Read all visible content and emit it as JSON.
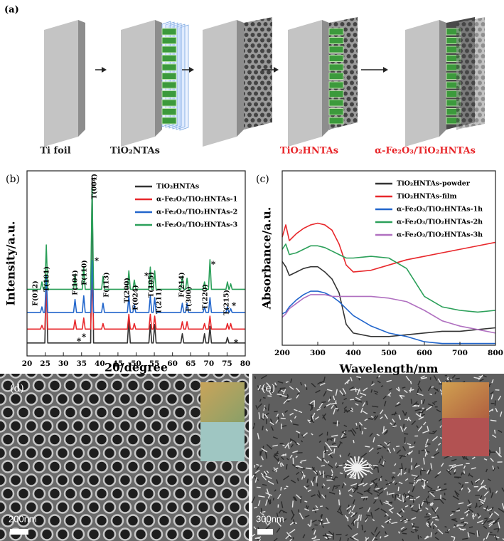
{
  "schematic": {
    "label": "(a)",
    "captions": [
      {
        "text": "Ti foil",
        "color": "#222222"
      },
      {
        "text": "TiO₂NTAs",
        "color": "#222222"
      },
      {
        "text": "TiO₂HNTAs",
        "color": "#e8282c"
      },
      {
        "text": "α-Fe₂O₃/TiO₂HNTAs",
        "color": "#e8282c"
      }
    ]
  },
  "chart_data": [
    {
      "type": "line",
      "panel_label": "(b)",
      "xlabel": "2θ/degree",
      "ylabel": "Intensity/a.u.",
      "x": [
        20,
        23.7,
        24.1,
        24.5,
        24.9,
        25.3,
        25.7,
        32.8,
        33.2,
        33.6,
        35.2,
        35.6,
        36.0,
        37.5,
        37.9,
        38.3,
        40.5,
        40.9,
        41.3,
        47.6,
        48.0,
        48.4,
        49.1,
        49.5,
        49.9,
        53.5,
        53.9,
        54.3,
        54.7,
        55.1,
        55.5,
        62.3,
        62.7,
        63.1,
        63.6,
        64.0,
        64.4,
        68.4,
        68.8,
        69.2,
        69.9,
        70.3,
        70.7,
        74.7,
        75.1,
        75.5,
        75.6,
        76.0,
        76.4,
        80
      ],
      "xlim": [
        20,
        80
      ],
      "xticks": [
        20,
        25,
        30,
        35,
        40,
        45,
        50,
        55,
        60,
        65,
        70,
        75,
        80
      ],
      "ylim": [
        0,
        100
      ],
      "legend": "upper right",
      "series": [
        {
          "name": "TiO₂HNTAs",
          "color": "#333333",
          "values": [
            7,
            7,
            7,
            7,
            7,
            42,
            7,
            7,
            7,
            7,
            7,
            7,
            7,
            7,
            97,
            7,
            7,
            7,
            7,
            7,
            20,
            7,
            7,
            7,
            7,
            7,
            17,
            7,
            7,
            17,
            7,
            7,
            12,
            7,
            7,
            7,
            7,
            7,
            12,
            7,
            7,
            16,
            7,
            7,
            10,
            7,
            7,
            7,
            7,
            7
          ]
        },
        {
          "name": "α-Fe₂O₃/TiO₂HNTAs-1",
          "color": "#e8282c",
          "values": [
            14.5,
            14.5,
            16.5,
            14.5,
            14.5,
            36.5,
            14.5,
            14.5,
            19.5,
            14.5,
            14.5,
            20.5,
            14.5,
            14.5,
            44.5,
            14.5,
            14.5,
            17.5,
            14.5,
            14.5,
            22.5,
            14.5,
            14.5,
            17.5,
            14.5,
            14.5,
            22.5,
            14.5,
            14.5,
            21.5,
            14.5,
            14.5,
            18.5,
            14.5,
            14.5,
            18.5,
            14.5,
            14.5,
            17.5,
            14.5,
            14.5,
            21.5,
            14.5,
            14.5,
            17.5,
            14.5,
            14.5,
            17.5,
            14.5,
            14.5
          ]
        },
        {
          "name": "α-Fe₂O₃/TiO₂HNTAs-2",
          "color": "#2266cc",
          "values": [
            23.5,
            23.5,
            26.5,
            23.5,
            23.5,
            43.5,
            23.5,
            23.5,
            30.5,
            23.5,
            23.5,
            32.5,
            23.5,
            23.5,
            51.5,
            23.5,
            23.5,
            28.5,
            23.5,
            23.5,
            32.5,
            23.5,
            23.5,
            27.5,
            23.5,
            23.5,
            32.5,
            23.5,
            23.5,
            31.5,
            23.5,
            23.5,
            28.5,
            23.5,
            23.5,
            28.5,
            23.5,
            23.5,
            26.5,
            23.5,
            23.5,
            31.5,
            23.5,
            23.5,
            26.5,
            23.5,
            23.5,
            25.5,
            23.5,
            23.5
          ]
        },
        {
          "name": "α-Fe₂O₃/TiO₂HNTAs-3",
          "color": "#2ca05a",
          "values": [
            36,
            36,
            40,
            36,
            36,
            60,
            36,
            36,
            44,
            36,
            36,
            48,
            36,
            36,
            91,
            36,
            36,
            43,
            36,
            36,
            46,
            36,
            36,
            41,
            36,
            36,
            48,
            36,
            36,
            46,
            36,
            36,
            43,
            36,
            36,
            42,
            36,
            36,
            40,
            36,
            36,
            52,
            36,
            36,
            40,
            36,
            36,
            39,
            36,
            36
          ]
        }
      ],
      "annotations": [
        "F(012)",
        "T(101)",
        "F(104)",
        "F(110)",
        "T(004)",
        "*",
        "F(113)",
        "T(200)",
        "F(024)",
        "*",
        "T(105)",
        "T(211)",
        "F(214)",
        "F(300)",
        "T(220)",
        "*",
        "T(215)",
        "*",
        "*",
        "*",
        "*"
      ]
    },
    {
      "type": "line",
      "panel_label": "(c)",
      "xlabel": "Wavelength/nm",
      "ylabel": "Absorbance/a.u.",
      "x": [
        200,
        210,
        220,
        240,
        260,
        280,
        300,
        320,
        340,
        360,
        380,
        400,
        450,
        500,
        550,
        600,
        650,
        700,
        750,
        800
      ],
      "xlim": [
        200,
        800
      ],
      "xticks": [
        200,
        300,
        400,
        500,
        600,
        700,
        800
      ],
      "ylim": [
        0,
        100
      ],
      "legend": "upper right",
      "series": [
        {
          "name": "TiO₂HNTAs-powder",
          "color": "#333333",
          "values": [
            48,
            45,
            40,
            42,
            44,
            45,
            45,
            42,
            38,
            30,
            12,
            7,
            5,
            5,
            6,
            7,
            8,
            8,
            9,
            10
          ]
        },
        {
          "name": "TiO₂HNTAs-film",
          "color": "#e8282c",
          "values": [
            62,
            69,
            60,
            64,
            67,
            69,
            70,
            69,
            66,
            58,
            46,
            42,
            43,
            46,
            49,
            51,
            53,
            55,
            57,
            59
          ]
        },
        {
          "name": "α-Fe₂O₃/TiO₂HNTAs-1h",
          "color": "#2266cc",
          "values": [
            18,
            19,
            22,
            26,
            29,
            31,
            31,
            30,
            28,
            25,
            21,
            17,
            11,
            7,
            5,
            2,
            1,
            1,
            1,
            1
          ]
        },
        {
          "name": "α-Fe₂O₃/TiO₂HNTAs-2h",
          "color": "#2ca05a",
          "values": [
            55,
            58,
            52,
            53,
            55,
            57,
            57,
            56,
            54,
            52,
            50,
            50,
            51,
            50,
            44,
            28,
            22,
            20,
            19,
            20
          ]
        },
        {
          "name": "α-Fe₂O₃/TiO₂HNTAs-3h",
          "color": "#b070c0",
          "values": [
            16,
            18,
            21,
            24,
            27,
            29,
            29,
            29,
            28,
            28,
            28,
            28,
            28,
            27,
            25,
            20,
            14,
            11,
            9,
            7
          ]
        }
      ]
    }
  ],
  "micrographs": [
    {
      "label": "(d)",
      "scale_bar": "200nm"
    },
    {
      "label": "(e)",
      "scale_bar": "300nm"
    }
  ]
}
